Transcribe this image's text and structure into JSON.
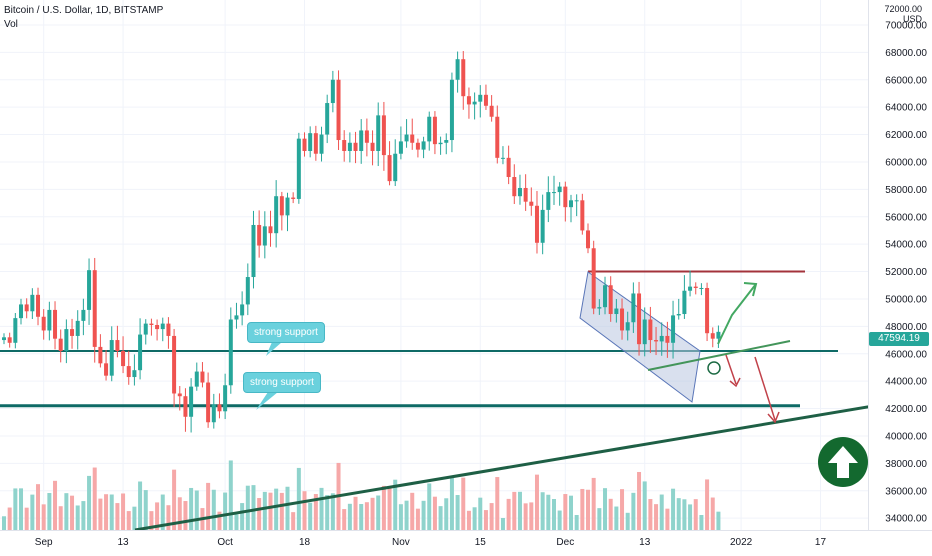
{
  "header": {
    "title": "Bitcoin / U.S. Dollar, 1D, BITSTAMP",
    "indicator": "Vol"
  },
  "price_axis": {
    "currency": "USD",
    "top_partial_label": "72000.00",
    "last_price": "47594.19"
  },
  "annotations": {
    "callout_upper": "strong support",
    "callout_lower": "strong support",
    "badge_icon": "arrow-up-icon"
  },
  "colors": {
    "up": "#26a69a",
    "down": "#ef5350",
    "support": "#0e6a66",
    "resistance": "#a3333b",
    "trend": "#1e5f45",
    "channel_fill": "#b9c6e0",
    "vol_up": "#8fd3cc",
    "vol_down": "#f6a8a8"
  },
  "chart_data": {
    "type": "candlestick",
    "title": "Bitcoin / U.S. Dollar, 1D, BITSTAMP",
    "ylim": [
      33500,
      72000
    ],
    "y_ticks": [
      "34000.00",
      "36000.00",
      "38000.00",
      "40000.00",
      "42000.00",
      "44000.00",
      "46000.00",
      "48000.00",
      "50000.00",
      "52000.00",
      "54000.00",
      "56000.00",
      "58000.00",
      "60000.00",
      "62000.00",
      "64000.00",
      "66000.00",
      "68000.00",
      "70000.00"
    ],
    "x_ticks": [
      "Sep",
      "13",
      "Oct",
      "18",
      "Nov",
      "15",
      "Dec",
      "13",
      "2022",
      "17"
    ],
    "last_price": 47594.19,
    "support_levels": [
      46200,
      42200
    ],
    "resistance_level": 52000,
    "annotations": [
      "strong support",
      "strong support"
    ],
    "close_series": [
      47200,
      46800,
      48600,
      49600,
      49100,
      50300,
      48700,
      47700,
      49200,
      47100,
      46200,
      47800,
      47300,
      48400,
      49200,
      52100,
      46500,
      45300,
      44400,
      47000,
      46200,
      45100,
      44300,
      44800,
      47400,
      48200,
      48100,
      47800,
      48200,
      47300,
      43100,
      42900,
      41400,
      43600,
      44700,
      43900,
      41000,
      42300,
      41800,
      43700,
      48500,
      48800,
      49600,
      51600,
      55400,
      53900,
      55300,
      54800,
      57500,
      56100,
      57400,
      57300,
      61700,
      60800,
      62100,
      60600,
      62000,
      64300,
      66000,
      61600,
      60800,
      61400,
      60800,
      62300,
      61400,
      60800,
      63400,
      60500,
      58600,
      60600,
      61500,
      62000,
      61400,
      60900,
      61500,
      63300,
      61300,
      61400,
      61600,
      66000,
      67500,
      64800,
      64200,
      64400,
      64900,
      64100,
      63300,
      60300,
      60300,
      58900,
      57500,
      58100,
      57100,
      56800,
      54100,
      56500,
      57800,
      57800,
      58200,
      56700,
      57200,
      57200,
      55000,
      53700,
      49300,
      49400,
      51000,
      48900,
      49300,
      47700,
      48300,
      50400,
      46700,
      48500,
      47000,
      46900,
      47300,
      46800,
      48800,
      48900,
      50600,
      50900,
      50800,
      50800,
      47500,
      47100,
      47600
    ]
  }
}
